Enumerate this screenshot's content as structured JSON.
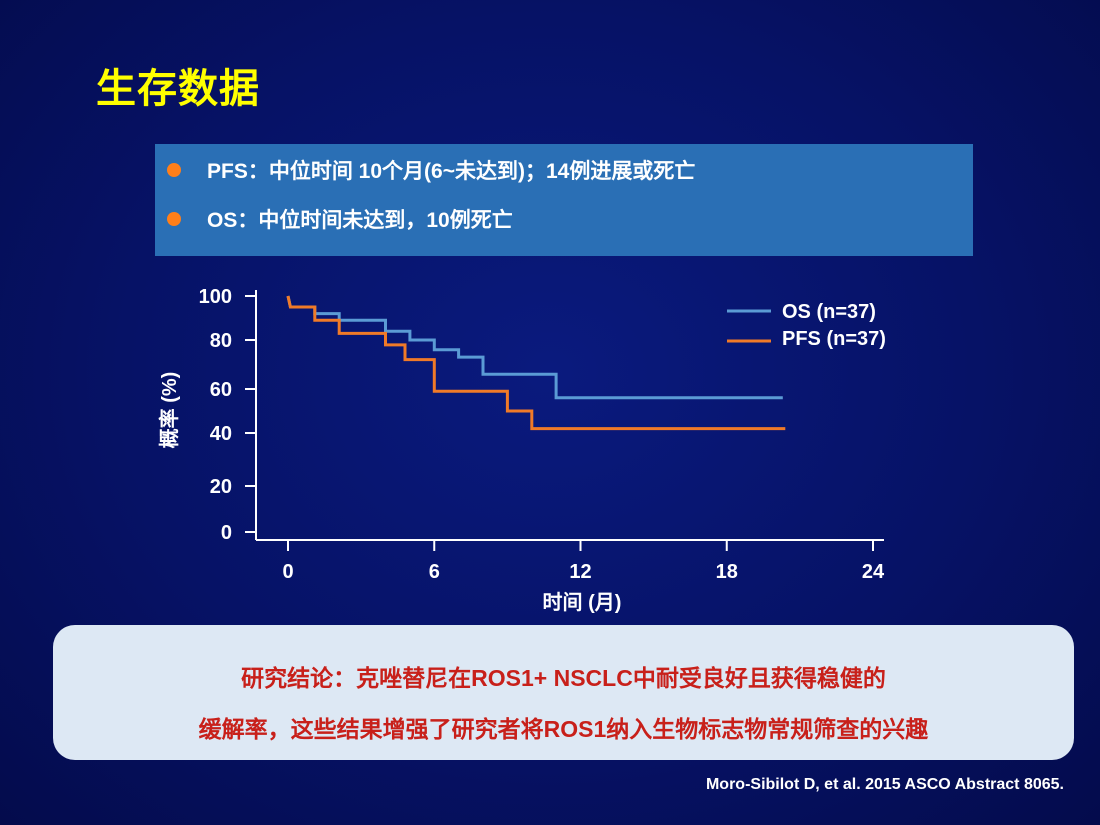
{
  "slide": {
    "title": "生存数据",
    "bullets": [
      "PFS：中位时间 10个月(6~未达到)；14例进展或死亡",
      "OS：中位时间未达到，10例死亡"
    ],
    "conclusion": [
      "研究结论：克唑替尼在ROS1+ NSCLC中耐受良好且获得稳健的",
      "缓解率，这些结果增强了研究者将ROS1纳入生物标志物常规筛查的兴趣"
    ],
    "citation": "Moro-Sibilot D, et al. 2015 ASCO Abstract 8065."
  },
  "colors": {
    "title": "#ffff00",
    "bullet_dot": "#ff7f1a",
    "os": "#5b9bd5",
    "pfs": "#f07a28",
    "conclusion_text": "#c8201a"
  },
  "chart_data": {
    "type": "line",
    "step": true,
    "xlabel": "时间 (月)",
    "ylabel": "概率 (%)",
    "xlim": [
      0,
      24
    ],
    "ylim": [
      0,
      100
    ],
    "xticks": [
      0,
      6,
      12,
      18,
      24
    ],
    "yticks": [
      0,
      20,
      40,
      60,
      80,
      100
    ],
    "grid": false,
    "legend_position": "top-right",
    "series": [
      {
        "name": "OS (n=37)",
        "color": "#5b9bd5",
        "points": [
          [
            0,
            100
          ],
          [
            0.1,
            95
          ],
          [
            1.1,
            95
          ],
          [
            1.1,
            92
          ],
          [
            2.1,
            92
          ],
          [
            2.1,
            89
          ],
          [
            4.0,
            89
          ],
          [
            4.0,
            84
          ],
          [
            5.0,
            84
          ],
          [
            5.0,
            80
          ],
          [
            6.0,
            80
          ],
          [
            6.0,
            76
          ],
          [
            7.0,
            76
          ],
          [
            7.0,
            73
          ],
          [
            8.0,
            73
          ],
          [
            8.0,
            66
          ],
          [
            11.0,
            66
          ],
          [
            11.0,
            56
          ],
          [
            20.3,
            56
          ]
        ]
      },
      {
        "name": "PFS (n=37)",
        "color": "#f07a28",
        "points": [
          [
            0,
            100
          ],
          [
            0.1,
            95
          ],
          [
            1.1,
            95
          ],
          [
            1.1,
            89
          ],
          [
            2.1,
            89
          ],
          [
            2.1,
            83
          ],
          [
            4.0,
            83
          ],
          [
            4.0,
            78
          ],
          [
            4.8,
            78
          ],
          [
            4.8,
            72
          ],
          [
            6.0,
            72
          ],
          [
            6.0,
            59
          ],
          [
            9.0,
            59
          ],
          [
            9.0,
            50
          ],
          [
            10.0,
            50
          ],
          [
            10.0,
            42
          ],
          [
            20.4,
            42
          ]
        ]
      }
    ]
  }
}
